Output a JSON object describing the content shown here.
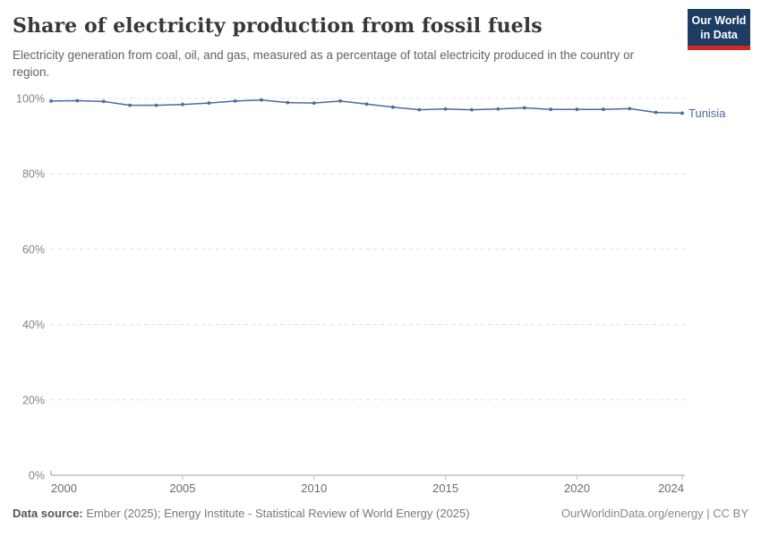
{
  "header": {
    "title": "Share of electricity production from fossil fuels",
    "subtitle": "Electricity generation from coal, oil, and gas, measured as a percentage of total electricity produced in the country or region.",
    "logo": {
      "line1": "Our World",
      "line2": "in Data",
      "bg_color": "#1d3d63",
      "accent_color": "#cd2b1f"
    }
  },
  "chart_data": {
    "type": "line",
    "title": "Share of electricity production from fossil fuels",
    "xlabel": "",
    "ylabel": "",
    "xlim": [
      2000,
      2024
    ],
    "ylim": [
      0,
      100
    ],
    "x_ticks": [
      2000,
      2005,
      2010,
      2015,
      2020,
      2024
    ],
    "y_ticks": [
      0,
      20,
      40,
      60,
      80,
      100
    ],
    "y_tick_suffix": "%",
    "grid": "horizontal-dashed",
    "legend_position": "end-of-line-label",
    "x": [
      2000,
      2001,
      2002,
      2003,
      2004,
      2005,
      2006,
      2007,
      2008,
      2009,
      2010,
      2011,
      2012,
      2013,
      2014,
      2015,
      2016,
      2017,
      2018,
      2019,
      2020,
      2021,
      2022,
      2023,
      2024
    ],
    "series": [
      {
        "name": "Tunisia",
        "color": "#4c6a9c",
        "values": [
          99.3,
          99.4,
          99.2,
          98.2,
          98.2,
          98.4,
          98.8,
          99.3,
          99.6,
          98.9,
          98.8,
          99.3,
          98.5,
          97.7,
          97.0,
          97.2,
          97.0,
          97.2,
          97.5,
          97.1,
          97.1,
          97.1,
          97.3,
          96.3,
          96.1
        ]
      }
    ]
  },
  "colors": {
    "gridline": "#e0e0e0",
    "axis_line": "#9e9e9e",
    "tick_mark": "#bdbdbd",
    "y_label": "#858585",
    "x_label": "#6b6b6b"
  },
  "footer": {
    "datasource_label": "Data source:",
    "datasource_text": "Ember (2025); Energy Institute - Statistical Review of World Energy (2025)",
    "right_text": "OurWorldinData.org/energy | CC BY"
  }
}
